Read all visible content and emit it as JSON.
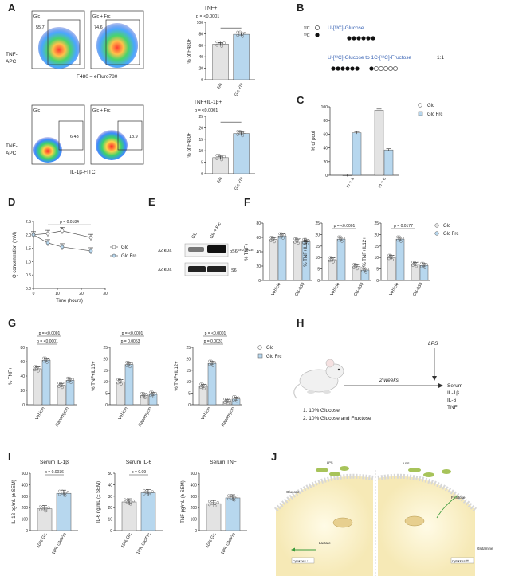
{
  "panels": {
    "A": {
      "letter": "A",
      "flow1": {
        "left_label": "Glc",
        "right_label": "Glc + Frc",
        "left_pct": "55.7",
        "right_pct": "74.6",
        "y_label_1": "TNF-",
        "y_label_2": "APC",
        "x_label": "F480 – eFluro780"
      },
      "flow2": {
        "left_label": "Glc",
        "right_label": "Glc + Frc",
        "left_pct": "6.43",
        "right_pct": "18.9",
        "y_label_1": "TNF-",
        "y_label_2": "APC",
        "x_label": "IL-1β-FITC"
      },
      "bar1": {
        "title": "TNF+",
        "p": "p = <0.0001",
        "ylabel": "% of F480+",
        "ticks": [
          "0",
          "20",
          "40",
          "60",
          "80",
          "100"
        ],
        "ymax": 100,
        "values": [
          62,
          79
        ],
        "categories": [
          "Glc",
          "Glc Frc"
        ]
      },
      "bar2": {
        "title": "TNF+IL-1β+",
        "p": "p = <0.0001",
        "ylabel": "% of F480+",
        "ticks": [
          "0",
          "5",
          "10",
          "15",
          "20",
          "25"
        ],
        "ymax": 25,
        "values": [
          7,
          17.5
        ],
        "categories": [
          "Glc",
          "Glc Frc"
        ]
      }
    },
    "B": {
      "letter": "B",
      "legend12": "¹²C",
      "legend13": "¹³C",
      "line1": "U-[¹³C]-Glucose",
      "line2": "U-[¹³C]-Glucose to 1C-[¹³C]-Fructose",
      "ratio": "1:1"
    },
    "C": {
      "letter": "C",
      "ylabel": "% of pool",
      "ticks": [
        "0",
        "20",
        "40",
        "60",
        "80",
        "100"
      ],
      "categories": [
        "m + 1",
        "m + 6"
      ],
      "legend": [
        "Glc",
        "Glc Frc"
      ]
    },
    "D": {
      "letter": "D",
      "ylabel": "Q concentration (mM)",
      "xlabel": "Time (hours)",
      "yticks": [
        "0.0",
        "0.5",
        "1.0",
        "1.5",
        "2.0",
        "2.5"
      ],
      "xticks": [
        "0",
        "10",
        "20",
        "30"
      ],
      "p": "p = 0.0184",
      "star": "*",
      "legend": [
        "Glc",
        "Glc Frc"
      ]
    },
    "E": {
      "letter": "E",
      "lane1": "Glc",
      "lane2": "Glc + Frc",
      "kda1": "32 kDa",
      "kda2": "32 kDa",
      "band1": "pS6",
      "band1_sup": "Ser235/236",
      "band2": "S6"
    },
    "F": {
      "letter": "F",
      "subplots": [
        {
          "ylabel": "% TNF+",
          "ticks": [
            "0",
            "20",
            "40",
            "60",
            "80"
          ],
          "p": "",
          "categories": [
            "Vehicle",
            "CB-839"
          ]
        },
        {
          "ylabel": "% TNF+IL1β+",
          "ticks": [
            "0",
            "5",
            "10",
            "15",
            "20",
            "25"
          ],
          "p": "p = <0.0001",
          "categories": [
            "Vehicle",
            "CB-839"
          ]
        },
        {
          "ylabel": "% TNF+IL12+",
          "ticks": [
            "0",
            "5",
            "10",
            "15",
            "20",
            "25"
          ],
          "p": "p = 0.0177",
          "categories": [
            "Vehicle",
            "CB-839"
          ]
        }
      ],
      "legend": [
        "Glc",
        "Glc Frc"
      ]
    },
    "G": {
      "letter": "G",
      "subplots": [
        {
          "ylabel": "% TNF+",
          "ticks": [
            "0",
            "20",
            "40",
            "60",
            "80"
          ],
          "p1": "p = <0.0001",
          "p2": "p = <0.0001",
          "categories": [
            "Vehicle",
            "Rapamycin"
          ]
        },
        {
          "ylabel": "% TNF+IL1β+",
          "ticks": [
            "0",
            "5",
            "10",
            "15",
            "20",
            "25"
          ],
          "p1": "p = <0.0001",
          "p2": "p = 0.0053",
          "categories": [
            "Vehicle",
            "Rapamycin"
          ]
        },
        {
          "ylabel": "% TNF+IL12+",
          "ticks": [
            "0",
            "5",
            "10",
            "15",
            "20",
            "25"
          ],
          "p1": "p = <0.0001",
          "p2": "p = 0.0031",
          "categories": [
            "Vehicle",
            "Rapamycin"
          ]
        }
      ],
      "legend": [
        "Glc",
        "Glc Frc"
      ]
    },
    "H": {
      "letter": "H",
      "lps": "LPS",
      "weeks": "2 weeks",
      "serum": [
        "Serum",
        "IL-1β",
        "IL-6",
        "TNF"
      ],
      "diet1": "1. 10% Glucose",
      "diet2": "2. 10% Glucose and Fructose"
    },
    "I": {
      "letter": "I",
      "subplots": [
        {
          "title": "Serum IL-1β",
          "ylabel": "IL-1β pg/mL (± SEM)",
          "ticks": [
            "0",
            "100",
            "200",
            "300",
            "400",
            "500"
          ],
          "p": "p = 0.0036",
          "categories": [
            "10% Glc",
            "10% Glc/Frc"
          ]
        },
        {
          "title": "Serum IL-6",
          "ylabel": "IL-6 ng/mL (± SEM)",
          "ticks": [
            "0",
            "10",
            "20",
            "30",
            "40",
            "50"
          ],
          "p": "p = 0.09",
          "categories": [
            "10% Glc",
            "10% Glc/Frc"
          ]
        },
        {
          "title": "Serum TNF",
          "ylabel": "TNF pg/mL (± SEM)",
          "ticks": [
            "0",
            "100",
            "200",
            "300",
            "400",
            "500"
          ],
          "p": "",
          "categories": [
            "10% Glc",
            "10% Glc/Frc"
          ]
        }
      ]
    },
    "J": {
      "letter": "J",
      "lps_left": "LPS",
      "lps_right": "LPS",
      "glucose": "Glucose",
      "fructose": "Fructose",
      "lactate": "Lactate",
      "glutamine": "Glutamine",
      "cytokines_left": "Cytokines ↑",
      "cytokines_right": "Cytokines ⇈"
    }
  },
  "chart_data": [
    {
      "type": "bar",
      "panel": "A",
      "title": "TNF+",
      "categories": [
        "Glc",
        "Glc Frc"
      ],
      "values": [
        62,
        79
      ],
      "ylabel": "% of F480+",
      "ylim": [
        0,
        100
      ]
    },
    {
      "type": "bar",
      "panel": "A",
      "title": "TNF+IL-1β+",
      "categories": [
        "Glc",
        "Glc Frc"
      ],
      "values": [
        7,
        17.5
      ],
      "ylabel": "% of F480+",
      "ylim": [
        0,
        25
      ]
    },
    {
      "type": "bar",
      "panel": "C",
      "categories": [
        "m + 1",
        "m + 6"
      ],
      "series": [
        {
          "name": "Glc",
          "values": [
            0,
            95
          ]
        },
        {
          "name": "Glc Frc",
          "values": [
            62,
            37
          ]
        }
      ],
      "ylabel": "% of pool",
      "ylim": [
        0,
        100
      ]
    },
    {
      "type": "line",
      "panel": "D",
      "x": [
        0,
        6,
        12,
        24
      ],
      "series": [
        {
          "name": "Glc",
          "values": [
            2.0,
            2.05,
            2.15,
            1.9
          ]
        },
        {
          "name": "Glc Frc",
          "values": [
            2.0,
            1.7,
            1.55,
            1.4
          ]
        }
      ],
      "xlabel": "Time (hours)",
      "ylabel": "Q concentration (mM)",
      "ylim": [
        0,
        2.5
      ],
      "xlim": [
        0,
        30
      ]
    },
    {
      "type": "bar",
      "panel": "F",
      "ylabel": "% TNF+",
      "categories": [
        "Vehicle",
        "CB-839"
      ],
      "series": [
        {
          "name": "Glc",
          "values": [
            57,
            55
          ]
        },
        {
          "name": "Glc Frc",
          "values": [
            62,
            54
          ]
        }
      ],
      "ylim": [
        0,
        80
      ]
    },
    {
      "type": "bar",
      "panel": "F",
      "ylabel": "% TNF+IL1β+",
      "categories": [
        "Vehicle",
        "CB-839"
      ],
      "series": [
        {
          "name": "Glc",
          "values": [
            9,
            6
          ]
        },
        {
          "name": "Glc Frc",
          "values": [
            18,
            4.5
          ]
        }
      ],
      "ylim": [
        0,
        25
      ]
    },
    {
      "type": "bar",
      "panel": "F",
      "ylabel": "% TNF+IL12+",
      "categories": [
        "Vehicle",
        "CB-839"
      ],
      "series": [
        {
          "name": "Glc",
          "values": [
            10,
            7
          ]
        },
        {
          "name": "Glc Frc",
          "values": [
            18,
            6.5
          ]
        }
      ],
      "ylim": [
        0,
        25
      ]
    },
    {
      "type": "bar",
      "panel": "G",
      "ylabel": "% TNF+",
      "categories": [
        "Vehicle",
        "Rapamycin"
      ],
      "series": [
        {
          "name": "Glc",
          "values": [
            50,
            27
          ]
        },
        {
          "name": "Glc Frc",
          "values": [
            62,
            34
          ]
        }
      ],
      "ylim": [
        0,
        80
      ]
    },
    {
      "type": "bar",
      "panel": "G",
      "ylabel": "% TNF+IL1β+",
      "categories": [
        "Vehicle",
        "Rapamycin"
      ],
      "series": [
        {
          "name": "Glc",
          "values": [
            10,
            4
          ]
        },
        {
          "name": "Glc Frc",
          "values": [
            17.5,
            4.5
          ]
        }
      ],
      "ylim": [
        0,
        25
      ]
    },
    {
      "type": "bar",
      "panel": "G",
      "ylabel": "% TNF+IL12+",
      "categories": [
        "Vehicle",
        "Rapamycin"
      ],
      "series": [
        {
          "name": "Glc",
          "values": [
            8,
            1.5
          ]
        },
        {
          "name": "Glc Frc",
          "values": [
            18,
            2.5
          ]
        }
      ],
      "ylim": [
        0,
        25
      ]
    },
    {
      "type": "bar",
      "panel": "I",
      "title": "Serum IL-1β",
      "categories": [
        "10% Glc",
        "10% Glc/Frc"
      ],
      "values": [
        190,
        325
      ],
      "ylabel": "IL-1β pg/mL (± SEM)",
      "ylim": [
        0,
        500
      ]
    },
    {
      "type": "bar",
      "panel": "I",
      "title": "Serum IL-6",
      "categories": [
        "10% Glc",
        "10% Glc/Frc"
      ],
      "values": [
        25,
        33
      ],
      "ylabel": "IL-6 ng/mL (± SEM)",
      "ylim": [
        0,
        50
      ]
    },
    {
      "type": "bar",
      "panel": "I",
      "title": "Serum TNF",
      "categories": [
        "10% Glc",
        "10% Glc/Frc"
      ],
      "values": [
        235,
        285
      ],
      "ylabel": "TNF pg/mL (± SEM)",
      "ylim": [
        0,
        500
      ]
    }
  ],
  "colors": {
    "glc": "#e3e3e3",
    "frc": "#b7d7ee",
    "axis": "#333333",
    "blue_text": "#3a64b5"
  }
}
